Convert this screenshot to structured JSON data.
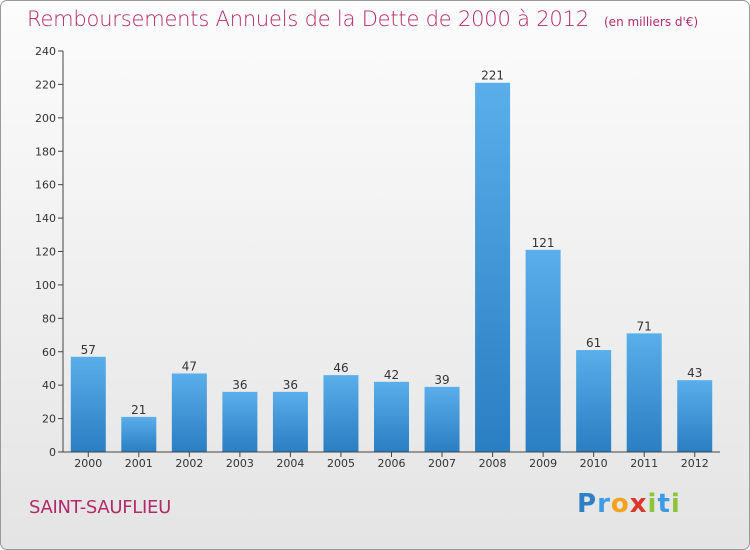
{
  "title": "Remboursements Annuels de la Dette de 2000 à 2012",
  "unit": "(en milliers d'€)",
  "place": "SAINT-SAUFLIEU",
  "logo": {
    "letters": [
      "P",
      "r",
      "o",
      "x",
      "i",
      "t",
      "i"
    ],
    "colors": [
      "#2f7fc6",
      "#3d9be6",
      "#f2a31b",
      "#d93a2b",
      "#8cc43a",
      "#3d9be6",
      "#8cc43a"
    ]
  },
  "colors": {
    "bar_top": "#5aaeea",
    "bar_bottom": "#2a7ec2",
    "accent": "#b22a6a"
  },
  "chart_data": {
    "type": "bar",
    "categories": [
      "2000",
      "2001",
      "2002",
      "2003",
      "2004",
      "2005",
      "2006",
      "2007",
      "2008",
      "2009",
      "2010",
      "2011",
      "2012"
    ],
    "values": [
      57,
      21,
      47,
      36,
      36,
      46,
      42,
      39,
      221,
      121,
      61,
      71,
      43
    ],
    "ylim": [
      0,
      240
    ],
    "yticks": [
      0,
      20,
      40,
      60,
      80,
      100,
      120,
      140,
      160,
      180,
      200,
      220,
      240
    ],
    "grid": false
  }
}
